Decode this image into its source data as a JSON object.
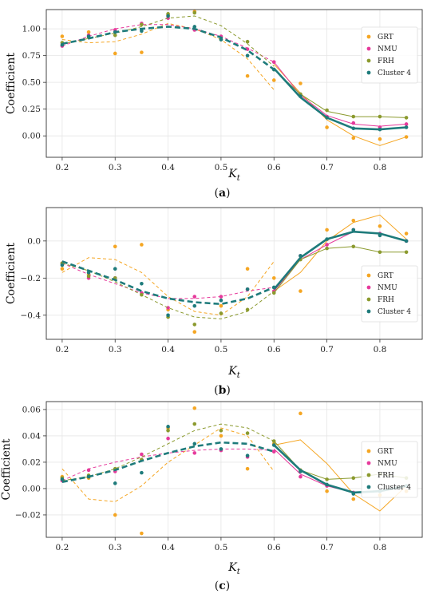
{
  "chart_data": [
    {
      "type": "line",
      "panel_label": "(a)",
      "xlabel": "K",
      "xlabel_sub": "t",
      "ylabel": "Coefficient",
      "xlim": [
        0.17,
        0.88
      ],
      "ylim": [
        -0.2,
        1.18
      ],
      "x_ticks": [
        0.2,
        0.3,
        0.4,
        0.5,
        0.6,
        0.7,
        0.8
      ],
      "x_tick_labels": [
        "0.2",
        "0.3",
        "0.4",
        "0.5",
        "0.6",
        "0.7",
        "0.8"
      ],
      "y_ticks": [
        0,
        0.25,
        0.5,
        0.75,
        1.0
      ],
      "y_tick_labels": [
        "0.00",
        "0.25",
        "0.50",
        "0.75",
        "1.00"
      ],
      "grid": true,
      "legend_position": "right",
      "series": [
        {
          "name": "GRT",
          "color": "#f5a623",
          "points_x": [
            0.2,
            0.25,
            0.3,
            0.35,
            0.4,
            0.45,
            0.5,
            0.55,
            0.6,
            0.65,
            0.7,
            0.75,
            0.8,
            0.85
          ],
          "points_y": [
            0.93,
            0.97,
            0.77,
            0.78,
            1.13,
            1.16,
            0.9,
            0.56,
            0.52,
            0.49,
            0.08,
            -0.02,
            -0.03,
            -0.01
          ],
          "line_x": [
            0.2,
            0.25,
            0.3,
            0.35,
            0.4,
            0.45,
            0.5,
            0.55,
            0.6
          ],
          "line_y": [
            0.9,
            0.87,
            0.88,
            0.95,
            1.05,
            1.0,
            0.9,
            0.72,
            0.43
          ],
          "line2_x": [
            0.6,
            0.65,
            0.7,
            0.75,
            0.8,
            0.85
          ],
          "line2_y": [
            0.67,
            0.4,
            0.15,
            0.0,
            -0.09,
            -0.01
          ]
        },
        {
          "name": "NMU",
          "color": "#e6399b",
          "points_x": [
            0.2,
            0.25,
            0.3,
            0.35,
            0.4,
            0.45,
            0.5,
            0.55,
            0.6,
            0.65,
            0.7,
            0.75,
            0.8,
            0.85
          ],
          "points_y": [
            0.84,
            0.94,
            0.99,
            1.05,
            1.1,
            0.99,
            0.93,
            0.81,
            0.69,
            0.38,
            0.18,
            0.12,
            0.08,
            0.11
          ],
          "line_x": [
            0.2,
            0.25,
            0.3,
            0.35,
            0.4,
            0.45,
            0.5,
            0.55,
            0.6
          ],
          "line_y": [
            0.84,
            0.93,
            1.0,
            1.04,
            1.04,
            1.0,
            0.93,
            0.82,
            0.69
          ],
          "line2_x": [
            0.6,
            0.65,
            0.7,
            0.75,
            0.8,
            0.85
          ],
          "line2_y": [
            0.69,
            0.38,
            0.19,
            0.11,
            0.09,
            0.11
          ]
        },
        {
          "name": "FRH",
          "color": "#8b9a2e",
          "points_x": [
            0.2,
            0.25,
            0.3,
            0.35,
            0.4,
            0.45,
            0.5,
            0.55,
            0.6,
            0.65,
            0.7,
            0.75,
            0.8,
            0.85
          ],
          "points_y": [
            0.87,
            0.92,
            0.94,
            1.04,
            1.14,
            1.15,
            0.9,
            0.88,
            0.62,
            0.39,
            0.24,
            0.18,
            0.18,
            0.17
          ],
          "line_x": [
            0.2,
            0.25,
            0.3,
            0.35,
            0.4,
            0.45,
            0.5,
            0.55,
            0.6
          ],
          "line_y": [
            0.86,
            0.91,
            0.96,
            1.02,
            1.1,
            1.12,
            1.03,
            0.86,
            0.65
          ],
          "line2_x": [
            0.6,
            0.65,
            0.7,
            0.75,
            0.8,
            0.85
          ],
          "line2_y": [
            0.62,
            0.39,
            0.23,
            0.18,
            0.18,
            0.17
          ]
        },
        {
          "name": "Cluster 4",
          "color": "#1e7b7b",
          "points_x": [
            0.2,
            0.25,
            0.3,
            0.35,
            0.4,
            0.45,
            0.5,
            0.55,
            0.6,
            0.65,
            0.7,
            0.75,
            0.8,
            0.85
          ],
          "points_y": [
            0.85,
            0.93,
            0.97,
            0.98,
            1.12,
            1.02,
            0.9,
            0.75,
            0.62,
            0.37,
            0.17,
            0.07,
            0.06,
            0.08
          ],
          "line_x": [
            0.2,
            0.25,
            0.3,
            0.35,
            0.4,
            0.45,
            0.5,
            0.55,
            0.6
          ],
          "line_y": [
            0.86,
            0.91,
            0.97,
            1.0,
            1.02,
            1.0,
            0.92,
            0.8,
            0.62
          ],
          "line2_x": [
            0.6,
            0.65,
            0.7,
            0.75,
            0.8,
            0.85
          ],
          "line2_y": [
            0.63,
            0.36,
            0.17,
            0.07,
            0.06,
            0.08
          ]
        }
      ]
    },
    {
      "type": "line",
      "panel_label": "(b)",
      "xlabel": "K",
      "xlabel_sub": "t",
      "ylabel": "Coefficient",
      "xlim": [
        0.17,
        0.88
      ],
      "ylim": [
        -0.53,
        0.18
      ],
      "x_ticks": [
        0.2,
        0.3,
        0.4,
        0.5,
        0.6,
        0.7,
        0.8
      ],
      "x_tick_labels": [
        "0.2",
        "0.3",
        "0.4",
        "0.5",
        "0.6",
        "0.7",
        "0.8"
      ],
      "y_ticks": [
        -0.4,
        -0.2,
        0.0
      ],
      "y_tick_labels": [
        "−0.4",
        "−0.2",
        "0.0"
      ],
      "grid": true,
      "legend_position": "right",
      "series": [
        {
          "name": "GRT",
          "color": "#f5a623",
          "points_x": [
            0.2,
            0.25,
            0.3,
            0.35,
            0.4,
            0.45,
            0.5,
            0.55,
            0.6,
            0.65,
            0.7,
            0.75,
            0.8,
            0.85
          ],
          "points_y": [
            -0.15,
            -0.18,
            -0.03,
            -0.02,
            -0.37,
            -0.49,
            -0.35,
            -0.15,
            -0.2,
            -0.27,
            0.06,
            0.11,
            0.08,
            0.04
          ],
          "line_x": [
            0.2,
            0.25,
            0.3,
            0.35,
            0.4,
            0.45,
            0.5,
            0.55,
            0.6
          ],
          "line_y": [
            -0.17,
            -0.09,
            -0.1,
            -0.17,
            -0.3,
            -0.38,
            -0.4,
            -0.3,
            -0.11
          ],
          "line2_x": [
            0.6,
            0.65,
            0.7,
            0.75,
            0.8,
            0.85
          ],
          "line2_y": [
            -0.27,
            -0.17,
            0.0,
            0.1,
            0.14,
            0.01
          ]
        },
        {
          "name": "NMU",
          "color": "#e6399b",
          "points_x": [
            0.2,
            0.25,
            0.3,
            0.35,
            0.4,
            0.45,
            0.5,
            0.55,
            0.6,
            0.65,
            0.7,
            0.75,
            0.8,
            0.85
          ],
          "points_y": [
            -0.12,
            -0.2,
            -0.2,
            -0.28,
            -0.36,
            -0.3,
            -0.3,
            -0.26,
            -0.27,
            -0.08,
            -0.02,
            0.06,
            0.04,
            0.0
          ],
          "line_x": [
            0.2,
            0.25,
            0.3,
            0.35,
            0.4,
            0.45,
            0.5,
            0.55,
            0.6
          ],
          "line_y": [
            -0.12,
            -0.18,
            -0.23,
            -0.28,
            -0.31,
            -0.31,
            -0.3,
            -0.27,
            -0.25
          ],
          "line2_x": [
            0.6,
            0.65,
            0.7,
            0.75,
            0.8,
            0.85
          ],
          "line2_y": [
            -0.27,
            -0.1,
            -0.02,
            0.05,
            0.04,
            0.0
          ]
        },
        {
          "name": "FRH",
          "color": "#8b9a2e",
          "points_x": [
            0.2,
            0.25,
            0.3,
            0.35,
            0.4,
            0.45,
            0.5,
            0.55,
            0.6,
            0.65,
            0.7,
            0.75,
            0.8,
            0.85
          ],
          "points_y": [
            -0.12,
            -0.19,
            -0.2,
            -0.29,
            -0.41,
            -0.45,
            -0.39,
            -0.37,
            -0.28,
            -0.1,
            -0.04,
            -0.03,
            -0.06,
            -0.06
          ],
          "line_x": [
            0.2,
            0.25,
            0.3,
            0.35,
            0.4,
            0.45,
            0.5,
            0.55,
            0.6
          ],
          "line_y": [
            -0.12,
            -0.16,
            -0.22,
            -0.29,
            -0.36,
            -0.41,
            -0.42,
            -0.38,
            -0.27
          ],
          "line2_x": [
            0.6,
            0.65,
            0.7,
            0.75,
            0.8,
            0.85
          ],
          "line2_y": [
            -0.28,
            -0.1,
            -0.04,
            -0.03,
            -0.06,
            -0.06
          ]
        },
        {
          "name": "Cluster 4",
          "color": "#1e7b7b",
          "points_x": [
            0.2,
            0.25,
            0.3,
            0.35,
            0.4,
            0.45,
            0.5,
            0.55,
            0.6,
            0.65,
            0.7,
            0.75,
            0.8,
            0.85
          ],
          "points_y": [
            -0.13,
            -0.17,
            -0.15,
            -0.23,
            -0.4,
            -0.35,
            -0.32,
            -0.26,
            -0.25,
            -0.08,
            0.01,
            0.06,
            0.03,
            0.0
          ],
          "line_x": [
            0.2,
            0.25,
            0.3,
            0.35,
            0.4,
            0.45,
            0.5,
            0.55,
            0.6
          ],
          "line_y": [
            -0.11,
            -0.16,
            -0.21,
            -0.27,
            -0.31,
            -0.33,
            -0.34,
            -0.31,
            -0.25
          ],
          "line2_x": [
            0.6,
            0.65,
            0.7,
            0.75,
            0.8,
            0.85
          ],
          "line2_y": [
            -0.26,
            -0.09,
            0.01,
            0.05,
            0.04,
            0.0
          ]
        }
      ]
    },
    {
      "type": "line",
      "panel_label": "(c)",
      "xlabel": "K",
      "xlabel_sub": "t",
      "ylabel": "Coefficient",
      "xlim": [
        0.17,
        0.88
      ],
      "ylim": [
        -0.037,
        0.066
      ],
      "x_ticks": [
        0.2,
        0.3,
        0.4,
        0.5,
        0.6,
        0.7,
        0.8
      ],
      "x_tick_labels": [
        "0.2",
        "0.3",
        "0.4",
        "0.5",
        "0.6",
        "0.7",
        "0.8"
      ],
      "y_ticks": [
        -0.02,
        0.0,
        0.02,
        0.04,
        0.06
      ],
      "y_tick_labels": [
        "−0.02",
        "0.00",
        "0.02",
        "0.04",
        "0.06"
      ],
      "grid": true,
      "legend_position": "right",
      "series": [
        {
          "name": "GRT",
          "color": "#f5a623",
          "points_x": [
            0.2,
            0.25,
            0.3,
            0.35,
            0.4,
            0.45,
            0.5,
            0.55,
            0.6,
            0.65,
            0.7,
            0.75,
            0.8,
            0.85
          ],
          "points_y": [
            0.009,
            0.008,
            -0.02,
            -0.034,
            0.046,
            0.061,
            0.04,
            0.015,
            0.034,
            0.057,
            -0.002,
            -0.008,
            -0.005,
            -0.002
          ],
          "line_x": [
            0.2,
            0.25,
            0.3,
            0.35,
            0.4,
            0.45,
            0.5,
            0.55,
            0.6
          ],
          "line_y": [
            0.015,
            -0.008,
            -0.01,
            0.002,
            0.02,
            0.033,
            0.046,
            0.04,
            0.013
          ],
          "line2_x": [
            0.6,
            0.65,
            0.7,
            0.75,
            0.8,
            0.85
          ],
          "line2_y": [
            0.033,
            0.037,
            0.019,
            -0.004,
            -0.017,
            0.002
          ]
        },
        {
          "name": "NMU",
          "color": "#e6399b",
          "points_x": [
            0.2,
            0.25,
            0.3,
            0.35,
            0.4,
            0.45,
            0.5,
            0.55,
            0.6,
            0.65,
            0.7,
            0.75,
            0.8,
            0.85
          ],
          "points_y": [
            0.006,
            0.014,
            0.013,
            0.026,
            0.038,
            0.027,
            0.029,
            0.024,
            0.028,
            0.009,
            0.002,
            -0.003,
            -0.002,
            0.002
          ],
          "line_x": [
            0.2,
            0.25,
            0.3,
            0.35,
            0.4,
            0.45,
            0.5,
            0.55,
            0.6
          ],
          "line_y": [
            0.006,
            0.015,
            0.02,
            0.024,
            0.027,
            0.029,
            0.03,
            0.03,
            0.029
          ],
          "line2_x": [
            0.6,
            0.65,
            0.7,
            0.75,
            0.8,
            0.85
          ],
          "line2_y": [
            0.03,
            0.011,
            0.002,
            -0.003,
            -0.002,
            0.002
          ]
        },
        {
          "name": "FRH",
          "color": "#8b9a2e",
          "points_x": [
            0.2,
            0.25,
            0.3,
            0.35,
            0.4,
            0.45,
            0.5,
            0.55,
            0.6,
            0.65,
            0.7,
            0.75,
            0.8,
            0.85
          ],
          "points_y": [
            0.008,
            0.01,
            0.015,
            0.022,
            0.044,
            0.049,
            0.044,
            0.042,
            0.036,
            0.014,
            0.007,
            0.008,
            0.011,
            0.008
          ],
          "line_x": [
            0.2,
            0.25,
            0.3,
            0.35,
            0.4,
            0.45,
            0.5,
            0.55,
            0.6
          ],
          "line_y": [
            0.006,
            0.009,
            0.015,
            0.024,
            0.034,
            0.044,
            0.049,
            0.046,
            0.036
          ],
          "line2_x": [
            0.6,
            0.65,
            0.7,
            0.75,
            0.8,
            0.85
          ],
          "line2_y": [
            0.036,
            0.014,
            0.007,
            0.008,
            0.011,
            0.008
          ]
        },
        {
          "name": "Cluster 4",
          "color": "#1e7b7b",
          "points_x": [
            0.2,
            0.25,
            0.3,
            0.35,
            0.4,
            0.45,
            0.5,
            0.55,
            0.6,
            0.65,
            0.7,
            0.75,
            0.8,
            0.85
          ],
          "points_y": [
            0.007,
            0.009,
            0.004,
            0.012,
            0.047,
            0.034,
            0.03,
            0.025,
            0.033,
            0.013,
            0.003,
            -0.004,
            -0.002,
            0.002
          ],
          "line_x": [
            0.2,
            0.25,
            0.3,
            0.35,
            0.4,
            0.45,
            0.5,
            0.55,
            0.6
          ],
          "line_y": [
            0.005,
            0.009,
            0.014,
            0.021,
            0.027,
            0.032,
            0.035,
            0.034,
            0.028
          ],
          "line2_x": [
            0.6,
            0.65,
            0.7,
            0.75,
            0.8,
            0.85
          ],
          "line2_y": [
            0.033,
            0.014,
            0.003,
            -0.003,
            -0.002,
            0.002
          ]
        }
      ]
    }
  ]
}
